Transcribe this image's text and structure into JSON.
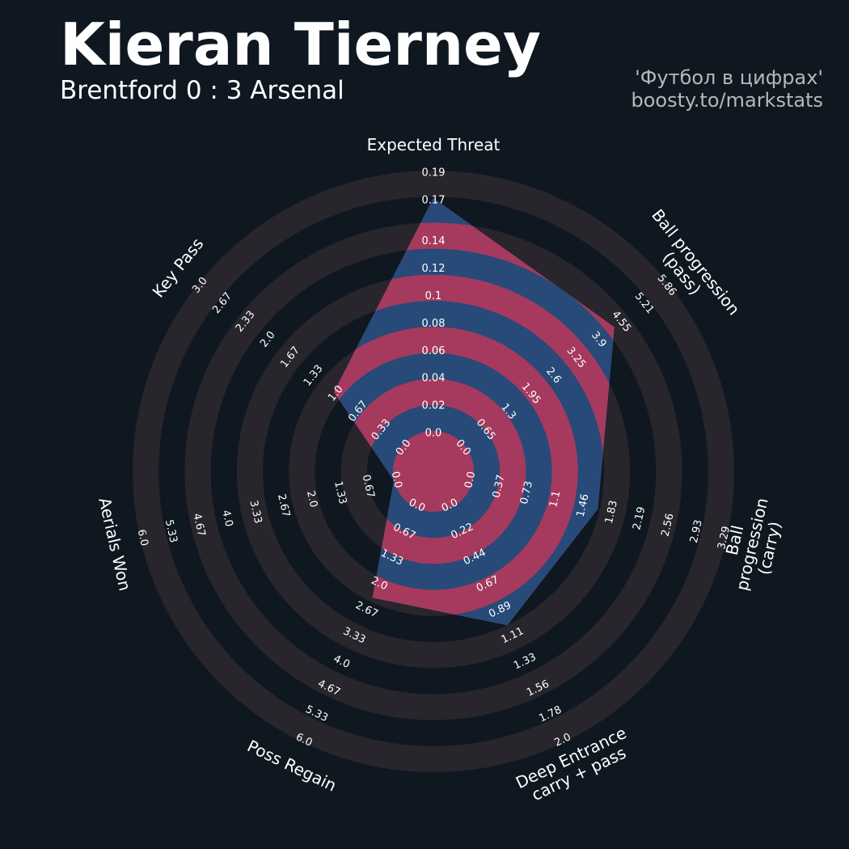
{
  "chart_data": {
    "type": "radar",
    "title": "Kieran Tierney",
    "subtitle": "Brentford 0 : 3 Arsenal",
    "credits": [
      "'Футбол в цифрах'",
      "boosty.to/markstats"
    ],
    "categories": [
      "Expected Threat",
      "Ball progression (pass)",
      "Ball progression (carry)",
      "Deep Entrance\ncarry + pass",
      "Poss Regain",
      "Aerials Won",
      "Key Pass"
    ],
    "values": [
      0.17,
      4.3,
      1.62,
      1.0,
      2.3,
      0,
      1.0
    ],
    "rlims": [
      [
        0,
        0.19
      ],
      [
        0,
        5.86
      ],
      [
        0,
        3.29
      ],
      [
        0,
        2
      ],
      [
        0,
        6
      ],
      [
        0,
        6
      ],
      [
        0,
        3
      ]
    ],
    "rticks": [
      [
        {
          "value": 0,
          "label": "0.0"
        },
        0.02,
        0.04,
        0.06,
        0.08,
        0.1,
        0.12,
        0.14,
        0.17,
        0.19
      ],
      [
        {
          "value": 0,
          "label": "0.0"
        },
        0.65,
        1.3,
        1.95,
        2.6,
        3.25,
        3.9,
        4.55,
        5.21,
        5.86
      ],
      [
        {
          "value": 0,
          "label": "0.0"
        },
        0.37,
        0.73,
        1.1,
        1.46,
        1.83,
        2.19,
        2.56,
        2.93,
        3.29
      ],
      [
        {
          "value": 0,
          "label": "0.0"
        },
        0.22,
        0.44,
        0.67,
        0.89,
        1.11,
        1.33,
        1.56,
        1.78,
        {
          "value": 2,
          "label": "2.0"
        }
      ],
      [
        {
          "value": 0,
          "label": "0.0"
        },
        0.67,
        1.33,
        {
          "value": 2,
          "label": "2.0"
        },
        2.67,
        3.33,
        {
          "value": 4,
          "label": "4.0"
        },
        4.67,
        5.33,
        {
          "value": 6,
          "label": "6.0"
        }
      ],
      [
        {
          "value": 0,
          "label": "0.0"
        },
        0.67,
        1.33,
        {
          "value": 2,
          "label": "2.0"
        },
        2.67,
        3.33,
        {
          "value": 4,
          "label": "4.0"
        },
        4.67,
        5.33,
        {
          "value": 6,
          "label": "6.0"
        }
      ],
      [
        {
          "value": 0,
          "label": "0.0"
        },
        0.33,
        0.67,
        {
          "value": 1,
          "label": "1.0"
        },
        1.33,
        1.67,
        {
          "value": 2,
          "label": "2.0"
        },
        2.33,
        2.67,
        {
          "value": 3,
          "label": "3.0"
        }
      ]
    ],
    "ring_color": "#28252c",
    "background_color": "#0f1820",
    "inner_color": "#a53a5e",
    "outer_color": "#274a78"
  }
}
